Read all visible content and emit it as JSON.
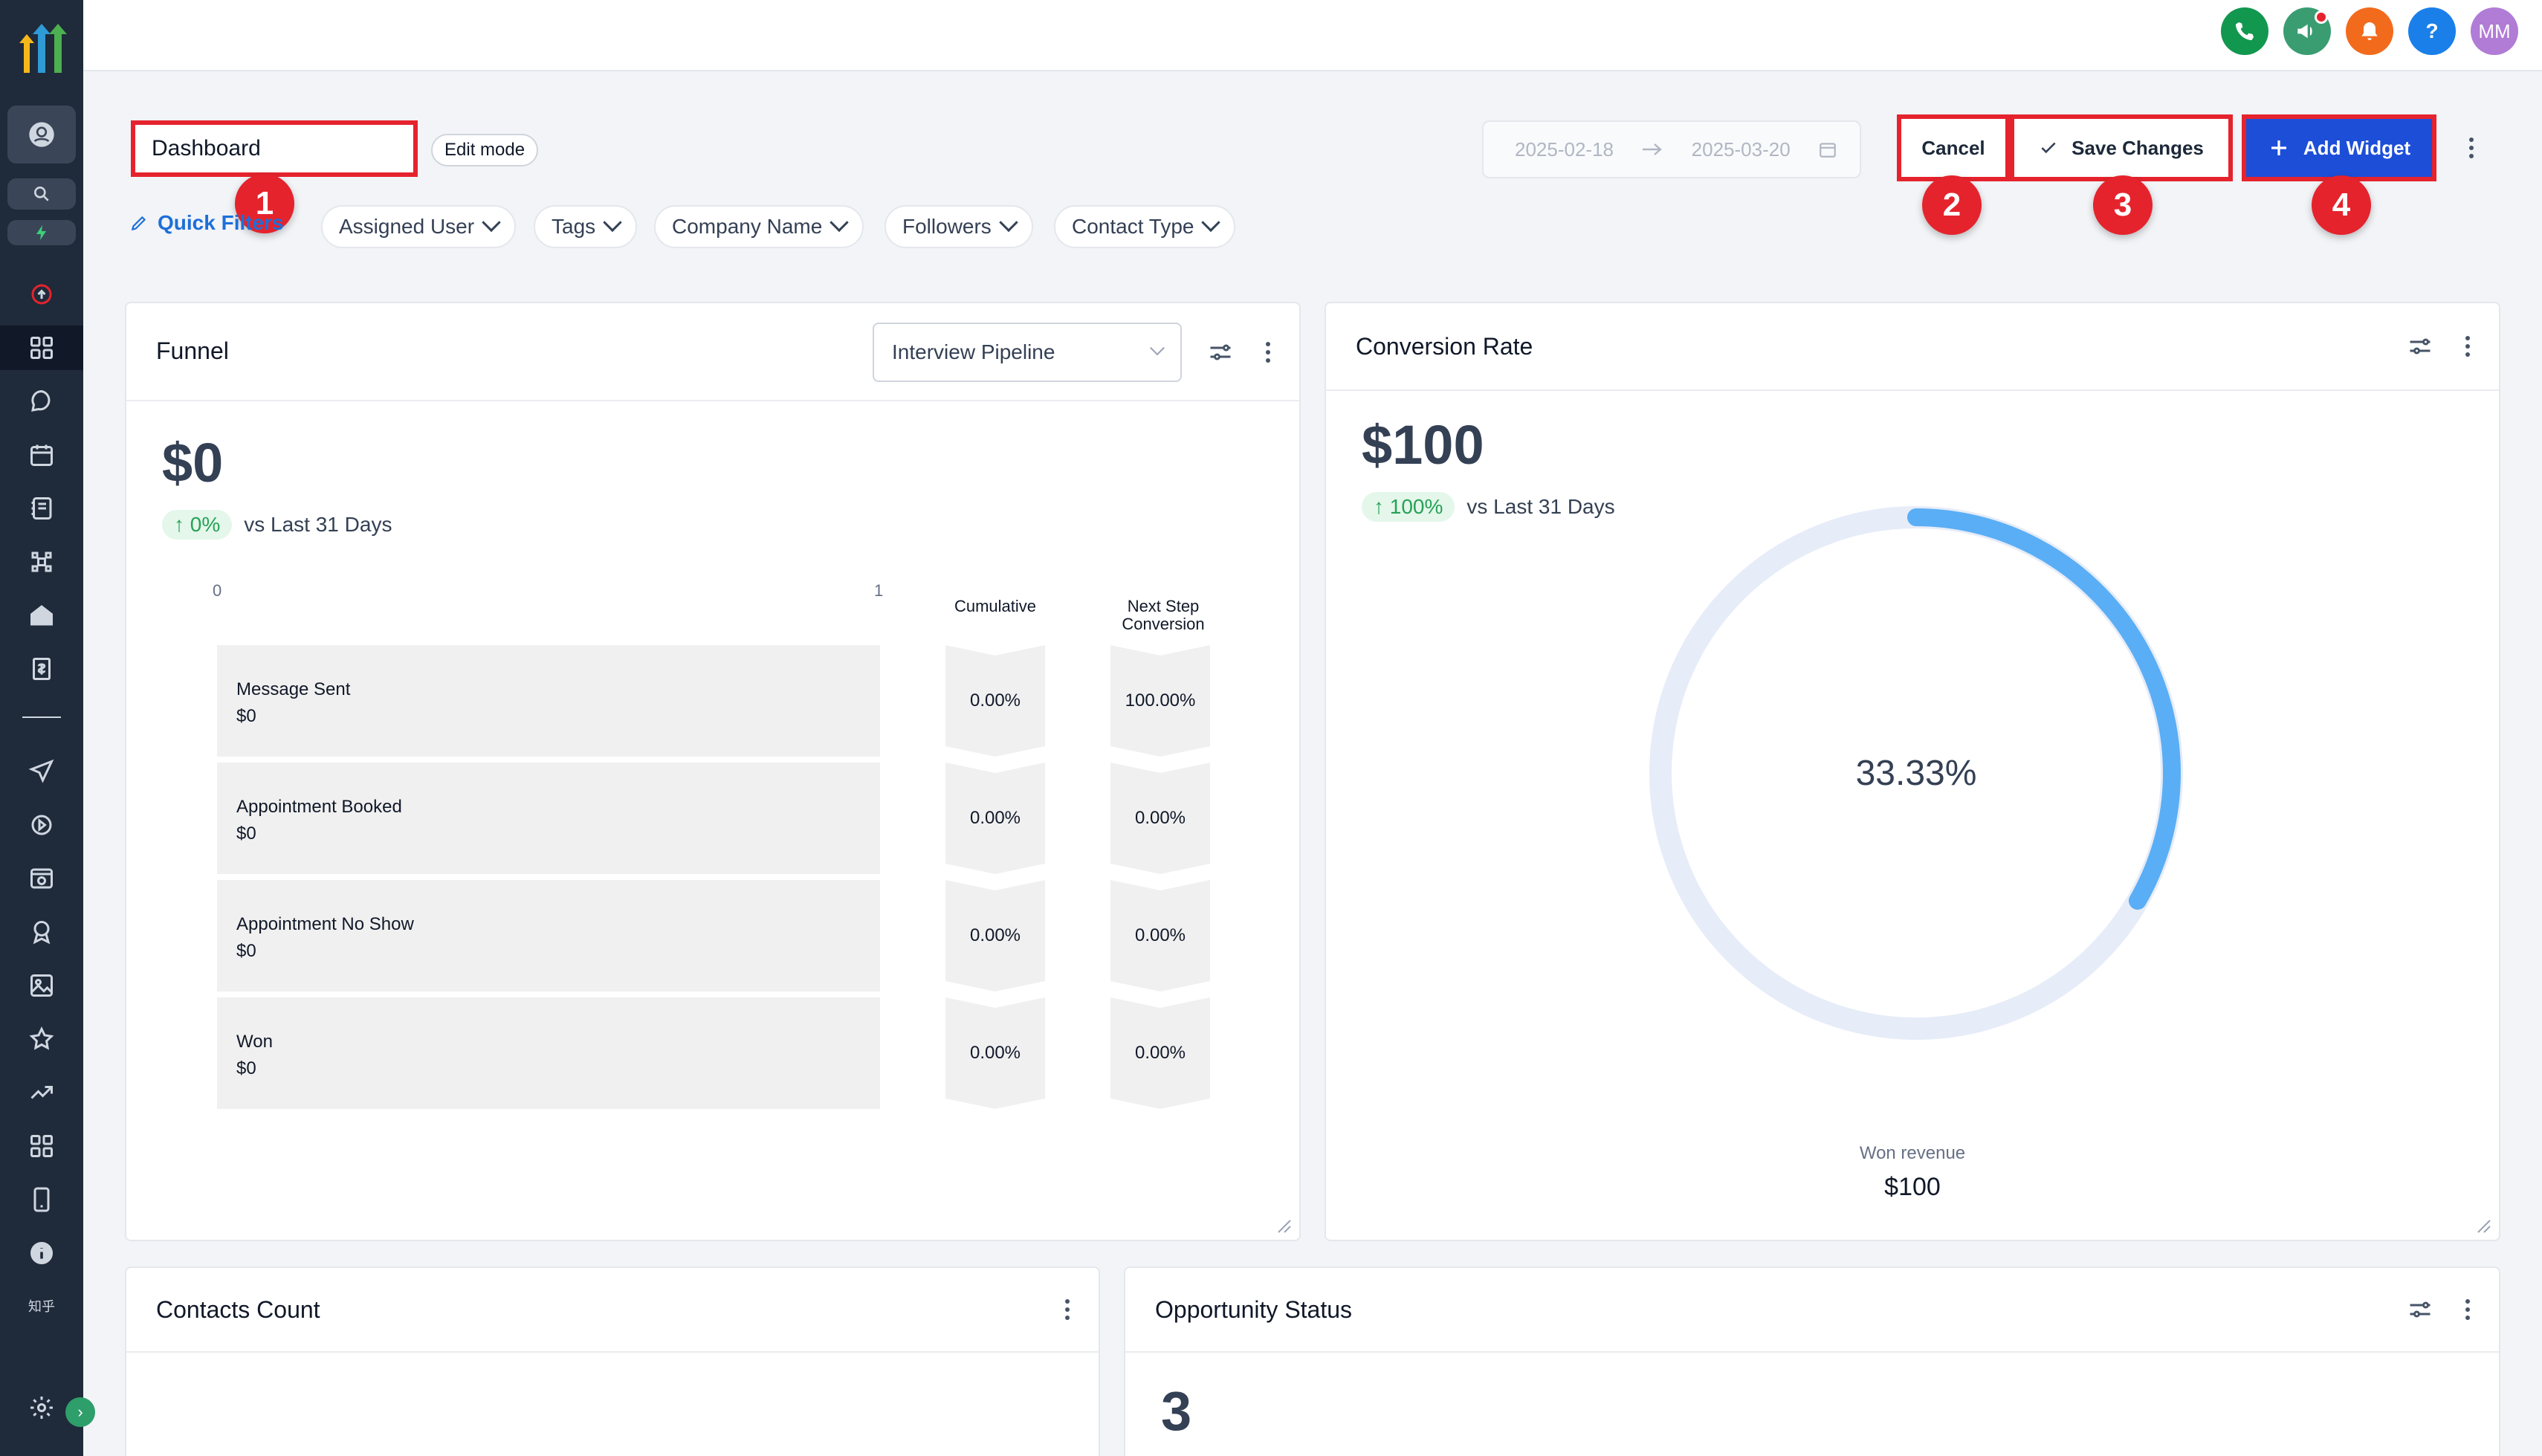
{
  "topbar": {
    "avatar_initials": "MM",
    "icons": [
      "phone-icon",
      "megaphone-icon",
      "bell-icon",
      "help-icon"
    ],
    "colors": {
      "phone": "#12974f",
      "megaphone": "#3a9d72",
      "bell": "#f26b1d",
      "help": "#1a7fe8",
      "avatar": "#b07cd6"
    }
  },
  "sidebar": {
    "icons": [
      "user-icon",
      "search-icon",
      "lightning-icon",
      "refresh-icon",
      "dashboard-icon",
      "chat-icon",
      "calendar-icon",
      "contacts-icon",
      "opportunities-icon",
      "home-icon",
      "payments-icon",
      "divider",
      "send-icon",
      "automation-icon",
      "sites-icon",
      "memberships-icon",
      "media-icon",
      "reputation-icon",
      "reporting-icon",
      "app-marketplace-icon",
      "mobile-icon",
      "info-icon"
    ],
    "footer_text": "知乎",
    "active": "dashboard-icon"
  },
  "header": {
    "dashboard_name": "Dashboard",
    "edit_mode_label": "Edit mode",
    "date_start": "2025-02-18",
    "date_end": "2025-03-20",
    "cancel_label": "Cancel",
    "save_label": "Save Changes",
    "add_widget_label": "Add Widget",
    "annotations": [
      "1",
      "2",
      "3",
      "4"
    ]
  },
  "filters": {
    "quick_filters_label": "Quick Filters",
    "chips": [
      "Assigned User",
      "Tags",
      "Company Name",
      "Followers",
      "Contact Type"
    ]
  },
  "funnel": {
    "title": "Funnel",
    "pipeline": "Interview Pipeline",
    "value": "$0",
    "trend": "0%",
    "trend_text": "vs Last 31 Days",
    "axis_min": "0",
    "axis_max": "1",
    "col_cumulative": "Cumulative",
    "col_next_line1": "Next Step",
    "col_next_line2": "Conversion",
    "stages": [
      {
        "name": "Message Sent",
        "value": "$0",
        "cumulative": "0.00%",
        "next": "100.00%"
      },
      {
        "name": "Appointment Booked",
        "value": "$0",
        "cumulative": "0.00%",
        "next": "0.00%"
      },
      {
        "name": "Appointment No Show",
        "value": "$0",
        "cumulative": "0.00%",
        "next": "0.00%"
      },
      {
        "name": "Won",
        "value": "$0",
        "cumulative": "0.00%",
        "next": "0.00%"
      }
    ]
  },
  "conversion": {
    "title": "Conversion Rate",
    "value": "$100",
    "trend": "100%",
    "trend_text": "vs Last 31 Days",
    "percent_label": "33.33%",
    "percent_value": 33.33,
    "won_label": "Won revenue",
    "won_value": "$100",
    "arc_color": "#5aaef5",
    "track_color": "#e6ecf8"
  },
  "contacts_count": {
    "title": "Contacts Count"
  },
  "opportunity_status": {
    "title": "Opportunity Status",
    "value": "3"
  }
}
